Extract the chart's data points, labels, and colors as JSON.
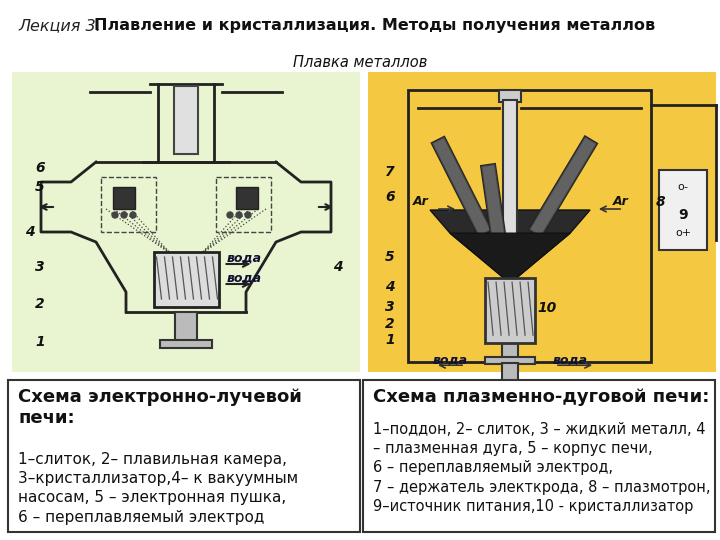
{
  "title_italic": "Лекция 3. ",
  "title_bold": "Плавление и кристаллизация. Методы получения металлов",
  "subtitle": "Плавка металлов",
  "bg_color": "#ffffff",
  "left_diagram_bg": "#e8f5d0",
  "right_diagram_bg": "#f5c842",
  "left_box_title": "Схема электронно-лучевой\nпечи:",
  "left_box_text": "1–слиток, 2– плавильная камера,\n3–кристаллизатор,4– к вакуумным\nнасосам, 5 – электронная пушка,\n6 – переплавляемый электрод",
  "right_box_title": "Схема плазменно-дуговой печи:",
  "right_box_text": "1–поддон, 2– слиток, 3 – жидкий металл, 4\n– плазменная дуга, 5 – корпус печи,\n6 – переплавляемый электрод,\n7 – держатель электкрода, 8 – плазмотрон,\n9–источник питания,10 - кристаллизатор"
}
